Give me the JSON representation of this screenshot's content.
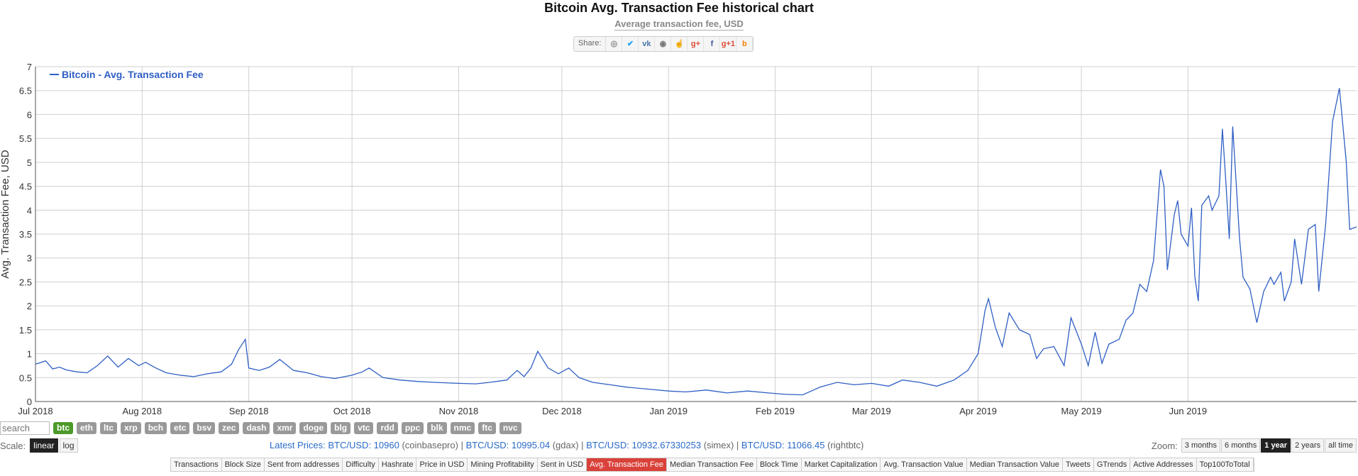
{
  "title": "Bitcoin Avg. Transaction Fee historical chart",
  "subtitle": "Average transaction fee, USD",
  "share": {
    "label": "Share:",
    "icons": [
      "reddit-icon",
      "twitter-icon",
      "vk-icon",
      "weibo-icon",
      "like-icon",
      "google-plus-icon",
      "facebook-icon",
      "google-plus-one-icon",
      "blogger-icon"
    ],
    "glyphs": [
      "◎",
      "✔",
      "vk",
      "◉",
      "☝",
      "g+",
      "f",
      "g+1",
      "b"
    ]
  },
  "chart_data": {
    "type": "line",
    "ylabel": "Avg. Transaction Fee, USD",
    "ylim": [
      0,
      7
    ],
    "y_ticks": [
      "0",
      "0.5",
      "1",
      "1.5",
      "2",
      "2.5",
      "3",
      "3.5",
      "4",
      "4.5",
      "5",
      "5.5",
      "6",
      "6.5",
      "7"
    ],
    "x_ticks": [
      "Jul 2018",
      "Aug 2018",
      "Sep 2018",
      "Oct 2018",
      "Nov 2018",
      "Dec 2018",
      "Jan 2019",
      "Feb 2019",
      "Mar 2019",
      "Apr 2019",
      "May 2019",
      "Jun 2019"
    ],
    "grid": true,
    "legend_position": "top-left",
    "color": "#2f5fc4",
    "series": [
      {
        "name": "Bitcoin - Avg. Transaction Fee",
        "points": [
          [
            "2018-07-01",
            0.78
          ],
          [
            "2018-07-04",
            0.85
          ],
          [
            "2018-07-06",
            0.68
          ],
          [
            "2018-07-08",
            0.72
          ],
          [
            "2018-07-10",
            0.66
          ],
          [
            "2018-07-13",
            0.62
          ],
          [
            "2018-07-16",
            0.6
          ],
          [
            "2018-07-19",
            0.75
          ],
          [
            "2018-07-22",
            0.95
          ],
          [
            "2018-07-25",
            0.72
          ],
          [
            "2018-07-28",
            0.9
          ],
          [
            "2018-07-31",
            0.75
          ],
          [
            "2018-08-02",
            0.82
          ],
          [
            "2018-08-05",
            0.7
          ],
          [
            "2018-08-08",
            0.6
          ],
          [
            "2018-08-12",
            0.55
          ],
          [
            "2018-08-16",
            0.52
          ],
          [
            "2018-08-20",
            0.58
          ],
          [
            "2018-08-24",
            0.62
          ],
          [
            "2018-08-27",
            0.78
          ],
          [
            "2018-08-29",
            1.08
          ],
          [
            "2018-08-31",
            1.3
          ],
          [
            "2018-09-01",
            0.7
          ],
          [
            "2018-09-04",
            0.65
          ],
          [
            "2018-09-07",
            0.72
          ],
          [
            "2018-09-10",
            0.88
          ],
          [
            "2018-09-14",
            0.65
          ],
          [
            "2018-09-18",
            0.6
          ],
          [
            "2018-09-22",
            0.52
          ],
          [
            "2018-09-26",
            0.48
          ],
          [
            "2018-10-01",
            0.55
          ],
          [
            "2018-10-04",
            0.62
          ],
          [
            "2018-10-06",
            0.7
          ],
          [
            "2018-10-10",
            0.5
          ],
          [
            "2018-10-15",
            0.45
          ],
          [
            "2018-10-20",
            0.42
          ],
          [
            "2018-10-25",
            0.4
          ],
          [
            "2018-11-01",
            0.38
          ],
          [
            "2018-11-06",
            0.37
          ],
          [
            "2018-11-10",
            0.4
          ],
          [
            "2018-11-15",
            0.45
          ],
          [
            "2018-11-18",
            0.65
          ],
          [
            "2018-11-20",
            0.52
          ],
          [
            "2018-11-22",
            0.7
          ],
          [
            "2018-11-24",
            1.05
          ],
          [
            "2018-11-27",
            0.7
          ],
          [
            "2018-11-30",
            0.58
          ],
          [
            "2018-12-03",
            0.7
          ],
          [
            "2018-12-06",
            0.5
          ],
          [
            "2018-12-10",
            0.4
          ],
          [
            "2018-12-15",
            0.35
          ],
          [
            "2018-12-20",
            0.3
          ],
          [
            "2018-12-26",
            0.26
          ],
          [
            "2019-01-01",
            0.22
          ],
          [
            "2019-01-06",
            0.2
          ],
          [
            "2019-01-12",
            0.24
          ],
          [
            "2019-01-18",
            0.18
          ],
          [
            "2019-01-24",
            0.22
          ],
          [
            "2019-01-30",
            0.18
          ],
          [
            "2019-02-04",
            0.15
          ],
          [
            "2019-02-09",
            0.14
          ],
          [
            "2019-02-14",
            0.3
          ],
          [
            "2019-02-19",
            0.4
          ],
          [
            "2019-02-24",
            0.35
          ],
          [
            "2019-03-01",
            0.38
          ],
          [
            "2019-03-06",
            0.32
          ],
          [
            "2019-03-10",
            0.45
          ],
          [
            "2019-03-15",
            0.4
          ],
          [
            "2019-03-20",
            0.32
          ],
          [
            "2019-03-25",
            0.45
          ],
          [
            "2019-03-29",
            0.65
          ],
          [
            "2019-04-01",
            1.0
          ],
          [
            "2019-04-03",
            1.9
          ],
          [
            "2019-04-04",
            2.15
          ],
          [
            "2019-04-06",
            1.55
          ],
          [
            "2019-04-08",
            1.15
          ],
          [
            "2019-04-10",
            1.85
          ],
          [
            "2019-04-13",
            1.5
          ],
          [
            "2019-04-16",
            1.4
          ],
          [
            "2019-04-18",
            0.9
          ],
          [
            "2019-04-20",
            1.1
          ],
          [
            "2019-04-23",
            1.15
          ],
          [
            "2019-04-26",
            0.75
          ],
          [
            "2019-04-28",
            1.75
          ],
          [
            "2019-05-01",
            1.2
          ],
          [
            "2019-05-03",
            0.75
          ],
          [
            "2019-05-05",
            1.45
          ],
          [
            "2019-05-07",
            0.8
          ],
          [
            "2019-05-09",
            1.2
          ],
          [
            "2019-05-12",
            1.3
          ],
          [
            "2019-05-14",
            1.7
          ],
          [
            "2019-05-16",
            1.85
          ],
          [
            "2019-05-18",
            2.45
          ],
          [
            "2019-05-20",
            2.3
          ],
          [
            "2019-05-22",
            2.95
          ],
          [
            "2019-05-24",
            4.85
          ],
          [
            "2019-05-25",
            4.5
          ],
          [
            "2019-05-26",
            2.75
          ],
          [
            "2019-05-28",
            3.9
          ],
          [
            "2019-05-29",
            4.2
          ],
          [
            "2019-05-30",
            3.5
          ],
          [
            "2019-06-01",
            3.25
          ],
          [
            "2019-06-02",
            4.05
          ],
          [
            "2019-06-03",
            2.6
          ],
          [
            "2019-06-04",
            2.1
          ],
          [
            "2019-06-05",
            4.1
          ],
          [
            "2019-06-07",
            4.3
          ],
          [
            "2019-06-08",
            4.0
          ],
          [
            "2019-06-10",
            4.3
          ],
          [
            "2019-06-11",
            5.7
          ],
          [
            "2019-06-12",
            4.6
          ],
          [
            "2019-06-13",
            3.4
          ],
          [
            "2019-06-14",
            5.75
          ],
          [
            "2019-06-16",
            3.4
          ],
          [
            "2019-06-17",
            2.6
          ],
          [
            "2019-06-19",
            2.35
          ],
          [
            "2019-06-21",
            1.65
          ],
          [
            "2019-06-23",
            2.3
          ],
          [
            "2019-06-25",
            2.6
          ],
          [
            "2019-06-26",
            2.45
          ],
          [
            "2019-06-28",
            2.7
          ],
          [
            "2019-06-29",
            2.1
          ],
          [
            "2019-07-01",
            2.5
          ],
          [
            "2019-07-02",
            3.4
          ],
          [
            "2019-07-04",
            2.45
          ],
          [
            "2019-07-06",
            3.6
          ],
          [
            "2019-07-08",
            3.7
          ],
          [
            "2019-07-09",
            2.3
          ],
          [
            "2019-07-11",
            3.7
          ],
          [
            "2019-07-13",
            5.85
          ],
          [
            "2019-07-15",
            6.55
          ],
          [
            "2019-07-17",
            5.0
          ],
          [
            "2019-07-18",
            3.6
          ],
          [
            "2019-07-20",
            3.65
          ]
        ]
      }
    ]
  },
  "filters": {
    "search_placeholder": "search",
    "coins": [
      "btc",
      "eth",
      "ltc",
      "xrp",
      "bch",
      "etc",
      "bsv",
      "zec",
      "dash",
      "xmr",
      "doge",
      "blg",
      "vtc",
      "rdd",
      "ppc",
      "blk",
      "nmc",
      "ftc",
      "nvc"
    ],
    "active": "btc"
  },
  "scale": {
    "label": "Scale:",
    "options": [
      "linear",
      "log"
    ],
    "active": "linear"
  },
  "prices": {
    "label": "Latest Prices:",
    "items": [
      {
        "pair": "BTC/USD: 10960",
        "source": "(coinbasepro)"
      },
      {
        "pair": "BTC/USD: 10995.04",
        "source": "(gdax)"
      },
      {
        "pair": "BTC/USD: 10932.67330253",
        "source": "(simex)"
      },
      {
        "pair": "BTC/USD: 11066.45",
        "source": "(rightbtc)"
      }
    ],
    "sep": "|"
  },
  "zoom": {
    "label": "Zoom:",
    "options": [
      "3 months",
      "6 months",
      "1 year",
      "2 years",
      "all time"
    ],
    "active": "1 year"
  },
  "tabs": {
    "items": [
      "Transactions",
      "Block Size",
      "Sent from addresses",
      "Difficulty",
      "Hashrate",
      "Price in USD",
      "Mining Profitability",
      "Sent in USD",
      "Avg. Transaction Fee",
      "Median Transaction Fee",
      "Block Time",
      "Market Capitalization",
      "Avg. Transaction Value",
      "Median Transaction Value",
      "Tweets",
      "GTrends",
      "Active Addresses",
      "Top100ToTotal"
    ],
    "active": "Avg. Transaction Fee"
  }
}
